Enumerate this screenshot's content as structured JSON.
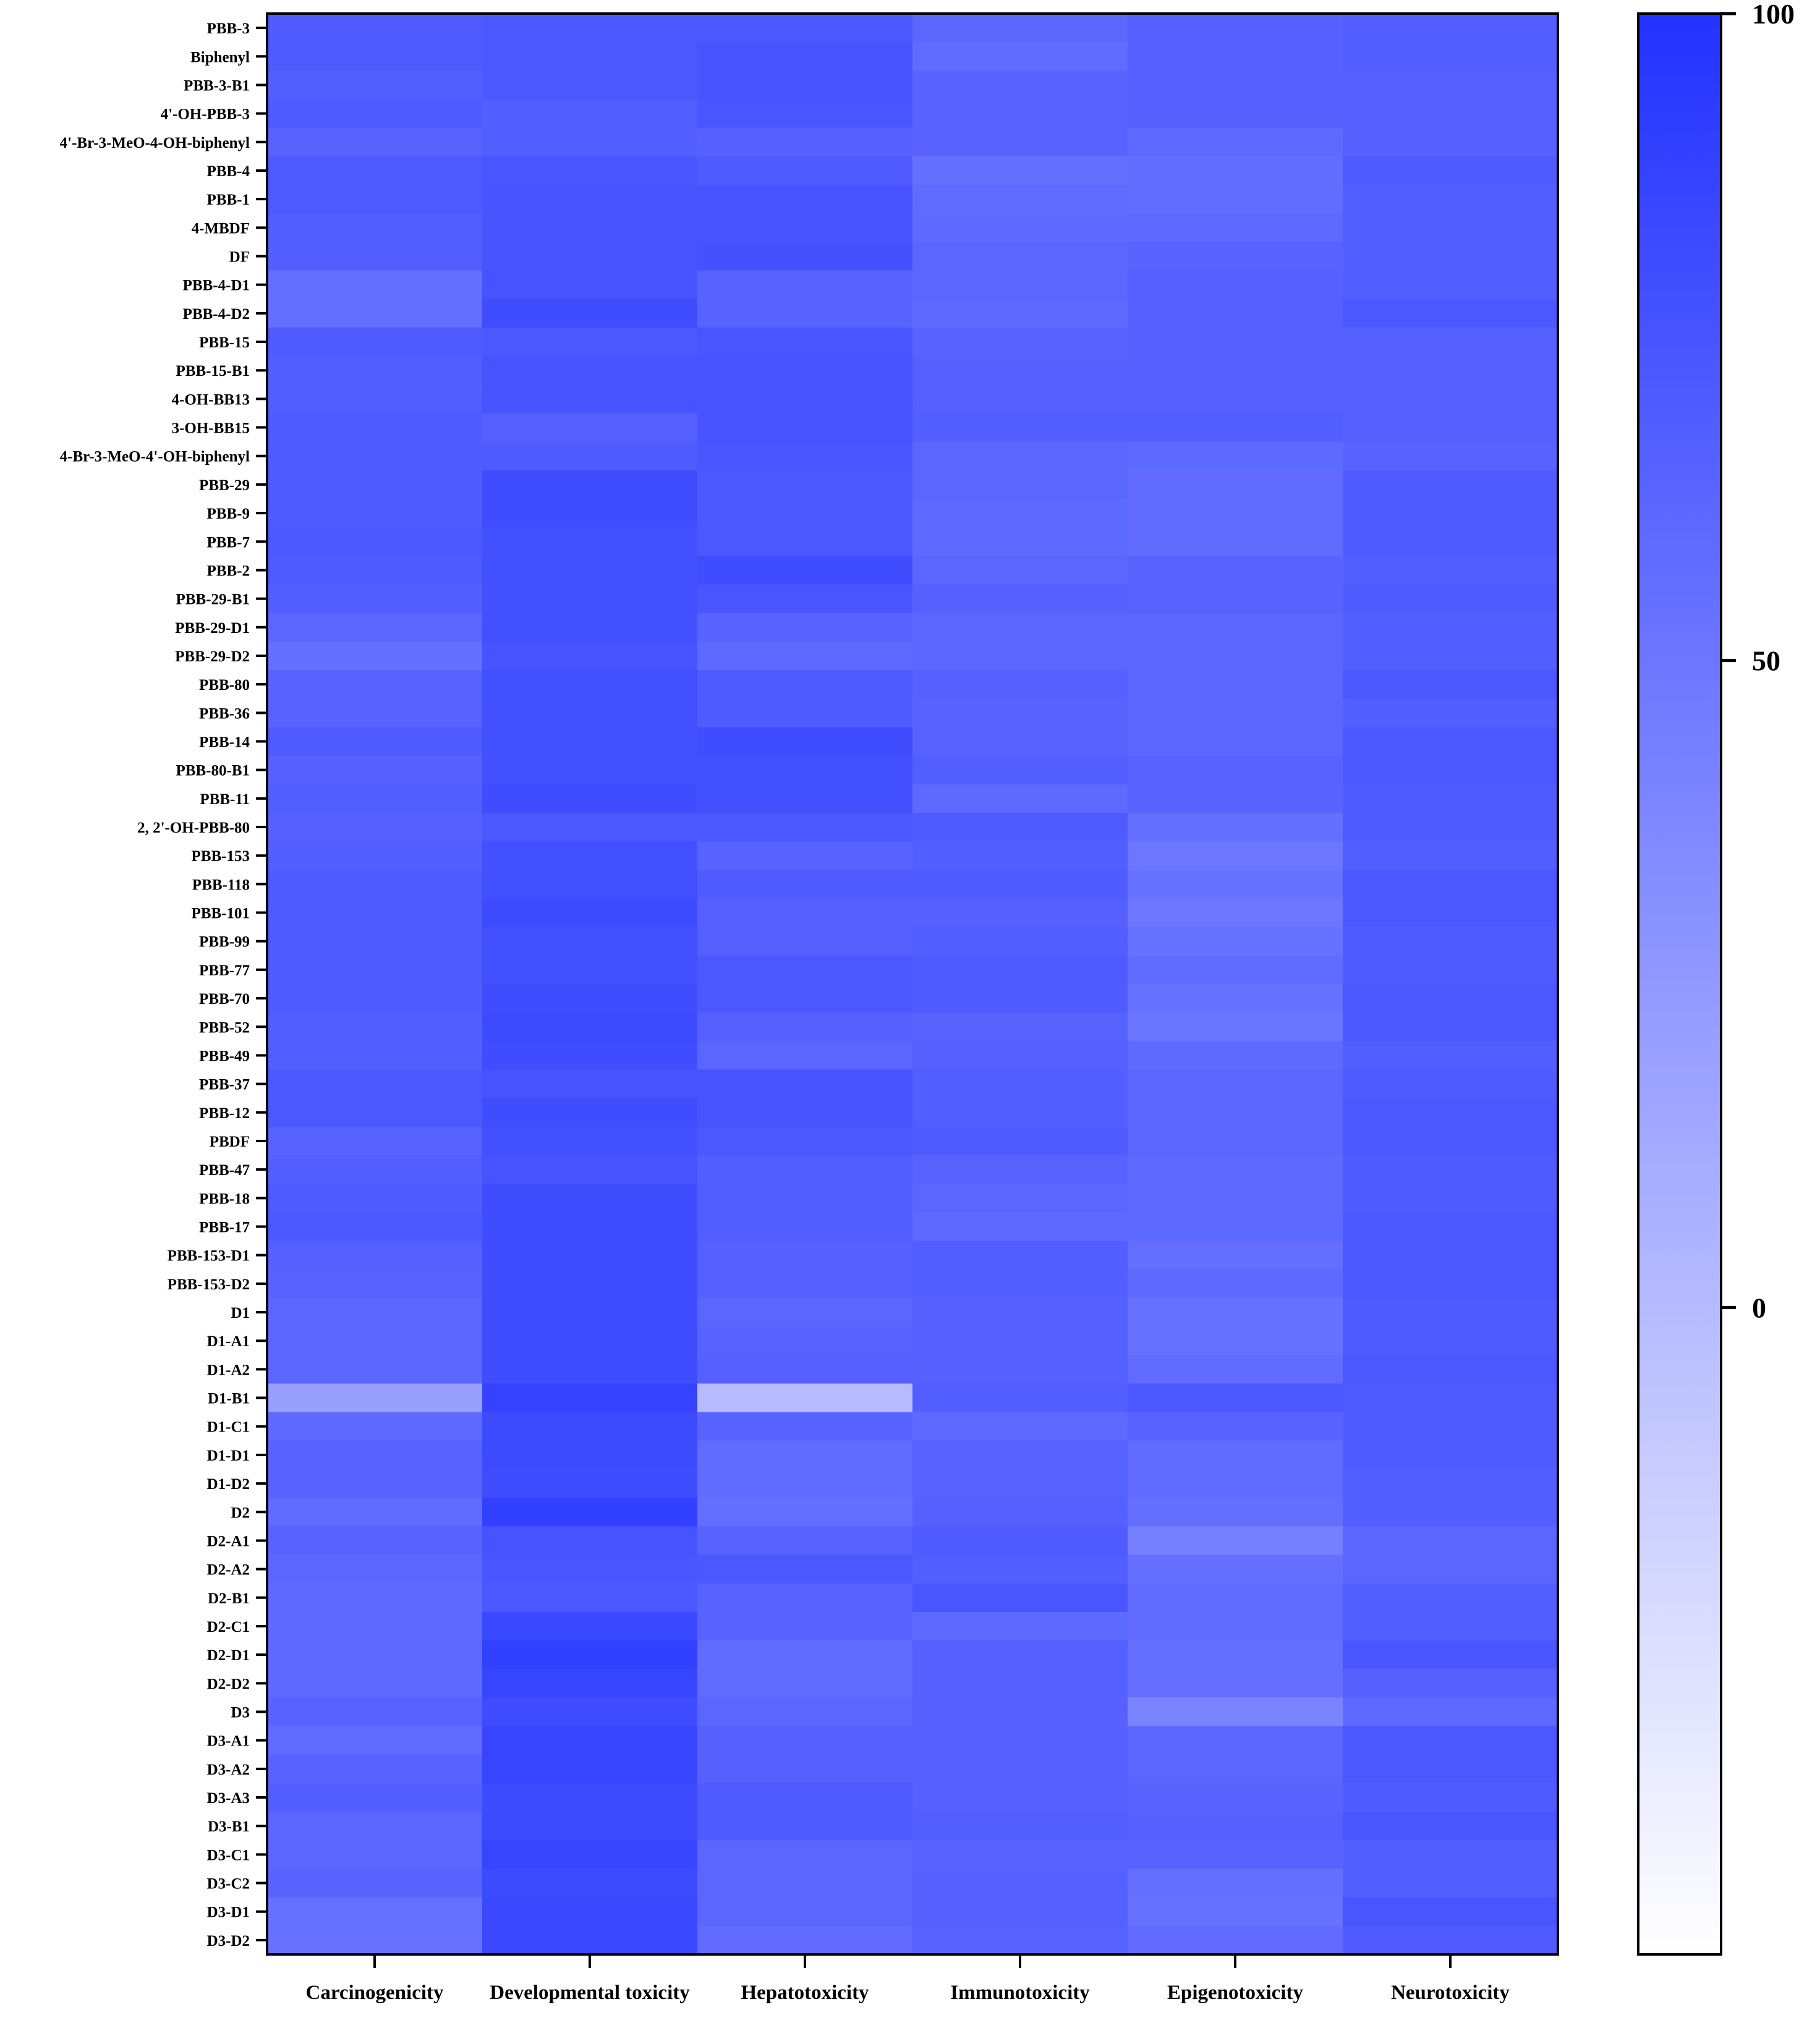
{
  "chart_data": {
    "type": "heatmap",
    "columns": [
      "Carcinogenicity",
      "Developmental toxicity",
      "Hepatotoxicity",
      "Immunotoxicity",
      "Epigenotoxicity",
      "Neurotoxicity"
    ],
    "rows": [
      "PBB-3",
      "Biphenyl",
      "PBB-3-B1",
      "4'-OH-PBB-3",
      "4'-Br-3-MeO-4-OH-biphenyl",
      "PBB-4",
      "PBB-1",
      "4-MBDF",
      "DF",
      "PBB-4-D1",
      "PBB-4-D2",
      "PBB-15",
      "PBB-15-B1",
      "4-OH-BB13",
      "3-OH-BB15",
      "4-Br-3-MeO-4'-OH-biphenyl",
      "PBB-29",
      "PBB-9",
      "PBB-7",
      "PBB-2",
      "PBB-29-B1",
      "PBB-29-D1",
      "PBB-29-D2",
      "PBB-80",
      "PBB-36",
      "PBB-14",
      "PBB-80-B1",
      "PBB-11",
      "2, 2'-OH-PBB-80",
      "PBB-153",
      "PBB-118",
      "PBB-101",
      "PBB-99",
      "PBB-77",
      "PBB-70",
      "PBB-52",
      "PBB-49",
      "PBB-37",
      "PBB-12",
      "PBDF",
      "PBB-47",
      "PBB-18",
      "PBB-17",
      "PBB-153-D1",
      "PBB-153-D2",
      "D1",
      "D1-A1",
      "D1-A2",
      "D1-B1",
      "D1-C1",
      "D1-D1",
      "D1-D2",
      "D2",
      "D2-A1",
      "D2-A2",
      "D2-B1",
      "D2-C1",
      "D2-D1",
      "D2-D2",
      "D3",
      "D3-A1",
      "D3-A2",
      "D3-A3",
      "D3-B1",
      "D3-C1",
      "D3-C2",
      "D3-D1",
      "D3-D2"
    ],
    "values": [
      [
        70,
        72,
        72,
        62,
        66,
        68
      ],
      [
        70,
        73,
        76,
        58,
        66,
        68
      ],
      [
        67,
        73,
        76,
        64,
        66,
        66
      ],
      [
        70,
        68,
        74,
        64,
        66,
        66
      ],
      [
        64,
        68,
        66,
        64,
        60,
        66
      ],
      [
        71,
        74,
        70,
        55,
        57,
        70
      ],
      [
        71,
        75,
        76,
        58,
        57,
        68
      ],
      [
        68,
        75,
        75,
        60,
        60,
        68
      ],
      [
        68,
        75,
        77,
        62,
        64,
        68
      ],
      [
        56,
        76,
        64,
        62,
        66,
        68
      ],
      [
        56,
        80,
        64,
        60,
        66,
        72
      ],
      [
        70,
        72,
        74,
        64,
        66,
        66
      ],
      [
        68,
        76,
        76,
        66,
        66,
        66
      ],
      [
        68,
        76,
        76,
        66,
        66,
        66
      ],
      [
        70,
        66,
        76,
        68,
        68,
        66
      ],
      [
        70,
        70,
        74,
        62,
        60,
        64
      ],
      [
        70,
        80,
        73,
        62,
        58,
        70
      ],
      [
        70,
        80,
        73,
        60,
        58,
        70
      ],
      [
        72,
        78,
        73,
        60,
        58,
        70
      ],
      [
        70,
        78,
        80,
        62,
        64,
        68
      ],
      [
        68,
        78,
        74,
        66,
        64,
        70
      ],
      [
        62,
        78,
        64,
        62,
        62,
        68
      ],
      [
        55,
        76,
        60,
        62,
        62,
        68
      ],
      [
        64,
        78,
        70,
        66,
        62,
        72
      ],
      [
        64,
        78,
        70,
        64,
        62,
        68
      ],
      [
        70,
        78,
        80,
        64,
        62,
        72
      ],
      [
        66,
        78,
        78,
        68,
        64,
        72
      ],
      [
        68,
        80,
        78,
        60,
        64,
        70
      ],
      [
        66,
        72,
        72,
        70,
        56,
        70
      ],
      [
        68,
        78,
        64,
        68,
        50,
        68
      ],
      [
        70,
        78,
        70,
        70,
        54,
        72
      ],
      [
        70,
        82,
        66,
        66,
        50,
        72
      ],
      [
        70,
        78,
        66,
        68,
        54,
        70
      ],
      [
        70,
        78,
        72,
        70,
        58,
        70
      ],
      [
        70,
        80,
        72,
        70,
        54,
        72
      ],
      [
        68,
        82,
        66,
        64,
        52,
        72
      ],
      [
        68,
        80,
        62,
        66,
        60,
        68
      ],
      [
        72,
        76,
        76,
        68,
        62,
        70
      ],
      [
        72,
        80,
        76,
        68,
        62,
        72
      ],
      [
        64,
        78,
        72,
        70,
        62,
        72
      ],
      [
        68,
        76,
        68,
        64,
        60,
        70
      ],
      [
        70,
        80,
        68,
        62,
        60,
        70
      ],
      [
        72,
        80,
        68,
        60,
        60,
        72
      ],
      [
        66,
        80,
        66,
        68,
        56,
        72
      ],
      [
        64,
        80,
        66,
        68,
        60,
        72
      ],
      [
        62,
        80,
        62,
        66,
        54,
        70
      ],
      [
        62,
        80,
        64,
        66,
        54,
        70
      ],
      [
        62,
        80,
        66,
        66,
        58,
        72
      ],
      [
        20,
        88,
        0,
        68,
        72,
        70
      ],
      [
        60,
        82,
        64,
        60,
        64,
        70
      ],
      [
        64,
        82,
        58,
        64,
        58,
        70
      ],
      [
        64,
        80,
        58,
        64,
        58,
        68
      ],
      [
        58,
        90,
        56,
        66,
        56,
        68
      ],
      [
        64,
        76,
        64,
        70,
        44,
        62
      ],
      [
        62,
        74,
        72,
        68,
        56,
        62
      ],
      [
        60,
        72,
        64,
        74,
        58,
        68
      ],
      [
        60,
        84,
        64,
        60,
        58,
        68
      ],
      [
        60,
        90,
        58,
        66,
        56,
        74
      ],
      [
        60,
        86,
        58,
        66,
        56,
        66
      ],
      [
        64,
        80,
        62,
        66,
        40,
        60
      ],
      [
        58,
        86,
        66,
        66,
        62,
        72
      ],
      [
        64,
        86,
        66,
        66,
        62,
        72
      ],
      [
        68,
        82,
        70,
        66,
        64,
        70
      ],
      [
        62,
        82,
        70,
        68,
        66,
        74
      ],
      [
        62,
        86,
        62,
        64,
        64,
        68
      ],
      [
        64,
        82,
        62,
        66,
        56,
        68
      ],
      [
        54,
        84,
        62,
        66,
        54,
        74
      ],
      [
        54,
        84,
        58,
        64,
        58,
        70
      ]
    ],
    "colorbar": {
      "min": -50,
      "max": 100,
      "ticks": [
        100,
        50,
        0
      ],
      "low_color": "#ffffff",
      "high_color": "#2332ff"
    },
    "title": "",
    "xlabel": "",
    "ylabel": ""
  }
}
